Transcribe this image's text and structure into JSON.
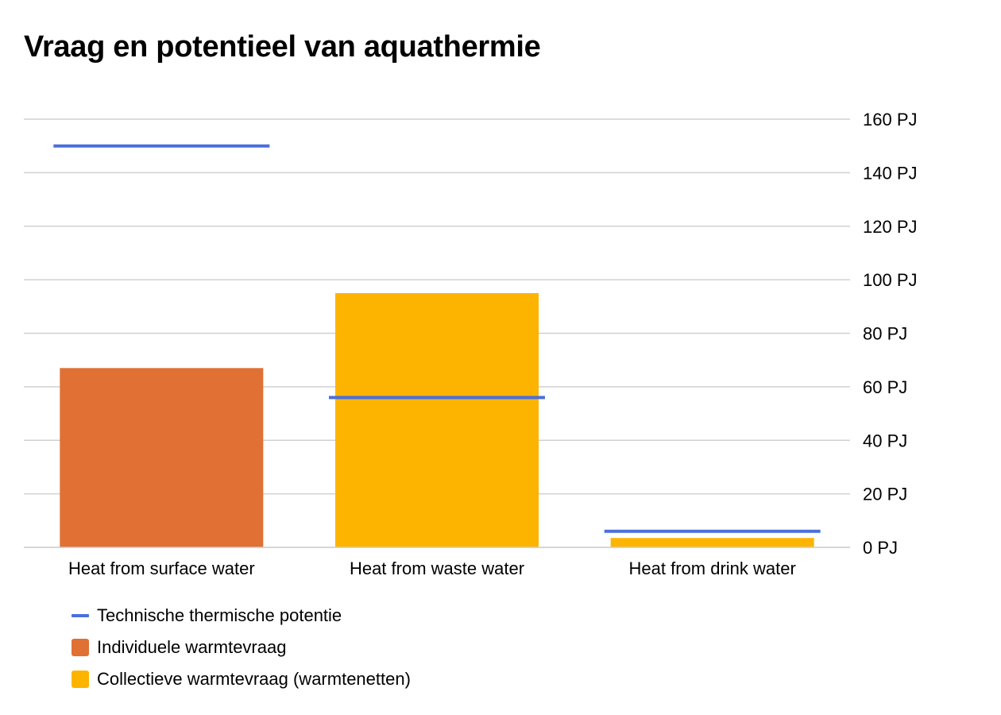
{
  "chart_data": {
    "type": "bar",
    "title": "Vraag en potentieel van aquathermie",
    "categories": [
      "Heat from surface water",
      "Heat from waste water",
      "Heat from drink water"
    ],
    "series": [
      {
        "name": "Technische thermische potentie",
        "kind": "line-marker",
        "color": "#4a6fdc",
        "values": [
          150,
          56,
          6
        ]
      },
      {
        "name": "Individuele warmtevraag",
        "kind": "bar",
        "color": "#e07034",
        "values": [
          67,
          0,
          0
        ]
      },
      {
        "name": "Collectieve warmtevraag (warmtenetten)",
        "kind": "bar",
        "color": "#fdb400",
        "values": [
          0,
          95,
          3.5
        ]
      }
    ],
    "yaxis": {
      "position": "right",
      "ylim": [
        0,
        160
      ],
      "ticks": [
        0,
        20,
        40,
        60,
        80,
        100,
        120,
        140,
        160
      ],
      "unit": "PJ"
    },
    "grid": true,
    "legend": "bottom-left"
  }
}
